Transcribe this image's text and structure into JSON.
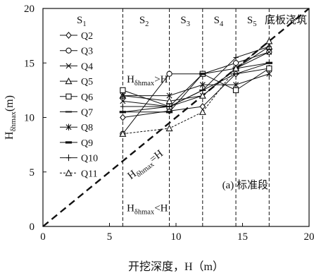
{
  "chart_data": {
    "type": "line",
    "xlabel": "开挖深度，H（m）",
    "ylabel_main": "H",
    "ylabel_sub": "δhmax",
    "ylabel_unit": "(m)",
    "xlim": [
      0,
      20
    ],
    "ylim": [
      0,
      20
    ],
    "xticks": [
      0,
      5,
      10,
      15,
      20
    ],
    "yticks": [
      0,
      5,
      10,
      15,
      20
    ],
    "grid": false,
    "legend_position": "left",
    "stage_boundaries": [
      6,
      9.5,
      12,
      14.5,
      17
    ],
    "stage_labels": [
      {
        "main": "S",
        "sub": "1",
        "x": 2.9
      },
      {
        "main": "S",
        "sub": "2",
        "x": 7.6
      },
      {
        "main": "S",
        "sub": "3",
        "x": 10.7
      },
      {
        "main": "S",
        "sub": "4",
        "x": 13.2
      },
      {
        "main": "S",
        "sub": "5",
        "x": 15.7
      }
    ],
    "top_right_label": "底板浇筑",
    "annotations": {
      "above": {
        "main": "H",
        "sub": "δhmax",
        "rest": ">H"
      },
      "diagonal": {
        "main": "H",
        "sub": "δhmax",
        "rest": "=H"
      },
      "below": {
        "main": "H",
        "sub": "δhmax",
        "rest": "<H"
      },
      "panel": "(a) 标准段"
    },
    "reference_line": {
      "x": [
        0,
        20
      ],
      "y": [
        0,
        20
      ],
      "style": "dashed"
    },
    "x": [
      6,
      9.5,
      12,
      14.5,
      17
    ],
    "series": [
      {
        "name": "Q2",
        "marker": "diamond",
        "values": [
          10.0,
          10.6,
          11.0,
          14.0,
          14.5
        ]
      },
      {
        "name": "Q3",
        "marker": "circle",
        "values": [
          8.5,
          14.0,
          14.0,
          15.0,
          16.0
        ]
      },
      {
        "name": "Q4",
        "marker": "x",
        "values": [
          11.5,
          11.0,
          12.0,
          14.5,
          16.0
        ]
      },
      {
        "name": "Q5",
        "marker": "triangle",
        "values": [
          12.0,
          11.5,
          12.0,
          14.5,
          16.5
        ]
      },
      {
        "name": "Q6",
        "marker": "square",
        "values": [
          12.5,
          11.0,
          14.0,
          12.5,
          14.5
        ]
      },
      {
        "name": "Q7",
        "marker": "dash",
        "values": [
          10.5,
          11.0,
          12.5,
          14.0,
          15.0
        ]
      },
      {
        "name": "Q8",
        "marker": "star",
        "values": [
          12.0,
          12.0,
          13.0,
          13.0,
          14.0
        ]
      },
      {
        "name": "Q9",
        "marker": "hbar",
        "values": [
          10.5,
          10.5,
          14.0,
          14.5,
          15.0
        ]
      },
      {
        "name": "Q10",
        "marker": "plus",
        "values": [
          11.0,
          11.0,
          12.5,
          15.5,
          16.5
        ]
      },
      {
        "name": "Q11",
        "marker": "triangle",
        "dashed": true,
        "values": [
          8.5,
          9.0,
          10.5,
          14.5,
          17.0
        ]
      }
    ]
  }
}
